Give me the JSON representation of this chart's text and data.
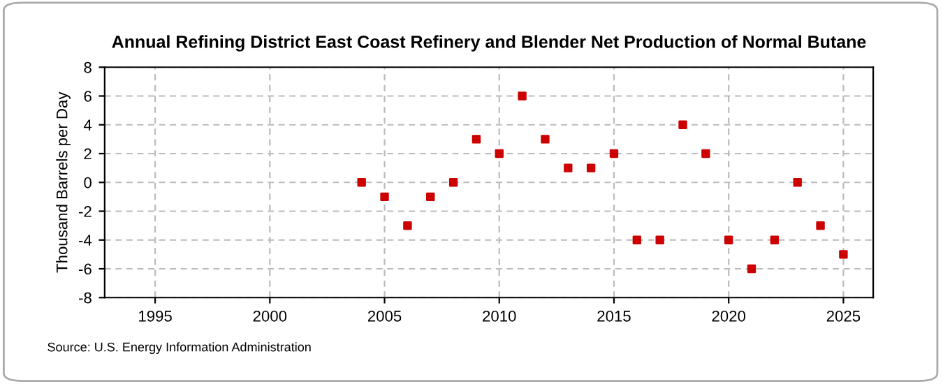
{
  "chart_data": {
    "type": "scatter",
    "title": "Annual Refining District East Coast Refinery and Blender Net Production of Normal Butane",
    "ylabel": "Thousand Barrels per Day",
    "x": [
      2004,
      2005,
      2006,
      2007,
      2008,
      2009,
      2010,
      2011,
      2012,
      2013,
      2014,
      2015,
      2016,
      2017,
      2018,
      2019,
      2020,
      2021,
      2022,
      2023,
      2024,
      2025
    ],
    "series": [
      {
        "color": "#cc0000",
        "values": [
          0,
          -1,
          -3,
          -1,
          0,
          3,
          2,
          6,
          3,
          1,
          1,
          2,
          -4,
          -4,
          4,
          2,
          -4,
          -6,
          -4,
          0,
          -3,
          -5
        ]
      }
    ],
    "xlim": [
      1992.8,
      2026.3
    ],
    "xticks": [
      1995,
      2000,
      2005,
      2010,
      2015,
      2020,
      2025
    ],
    "ylim": [
      -8,
      8
    ],
    "yticks": [
      -8,
      -6,
      -4,
      -2,
      0,
      2,
      4,
      6,
      8
    ],
    "grid": true,
    "marker": "square",
    "annotations": [
      "Source: U.S. Energy Information Administration"
    ]
  }
}
